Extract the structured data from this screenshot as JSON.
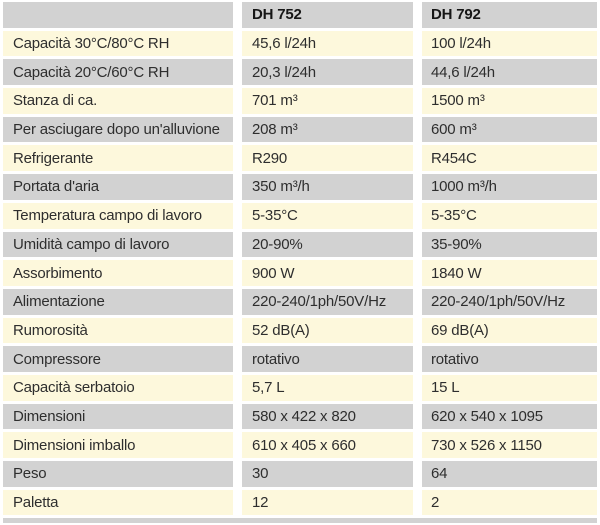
{
  "table": {
    "columns": [
      "",
      "DH 752",
      "DH 792"
    ],
    "rows": [
      {
        "label": "Capacità 30°C/80°C RH",
        "dh752": "45,6 l/24h",
        "dh792": "100 l/24h"
      },
      {
        "label": "Capacità 20°C/60°C RH",
        "dh752": "20,3 l/24h",
        "dh792": "44,6 l/24h"
      },
      {
        "label": "Stanza di ca.",
        "dh752": "701 m³",
        "dh792": "1500 m³"
      },
      {
        "label": "Per asciugare dopo un'alluvione",
        "dh752": "208 m³",
        "dh792": "600 m³"
      },
      {
        "label": "Refrigerante",
        "dh752": "R290",
        "dh792": "R454C"
      },
      {
        "label": "Portata d'aria",
        "dh752": "350 m³/h",
        "dh792": "1000 m³/h"
      },
      {
        "label": "Temperatura campo di lavoro",
        "dh752": "5-35°C",
        "dh792": "5-35°C"
      },
      {
        "label": "Umidità campo di lavoro",
        "dh752": "20-90%",
        "dh792": "35-90%"
      },
      {
        "label": "Assorbimento",
        "dh752": "900 W",
        "dh792": "1840 W"
      },
      {
        "label": "Alimentazione",
        "dh752": "220-240/1ph/50V/Hz",
        "dh792": "220-240/1ph/50V/Hz"
      },
      {
        "label": "Rumorosità",
        "dh752": "52 dB(A)",
        "dh792": "69 dB(A)"
      },
      {
        "label": "Compressore",
        "dh752": "rotativo",
        "dh792": "rotativo"
      },
      {
        "label": "Capacità serbatoio",
        "dh752": "5,7 L",
        "dh792": "15 L"
      },
      {
        "label": "Dimensioni",
        "dh752": "580 x 422 x 820",
        "dh792": "620 x 540 x 1095"
      },
      {
        "label": "Dimensioni imballo",
        "dh752": "610 x 405 x 660",
        "dh792": "730 x 526 x 1150"
      },
      {
        "label": "Peso",
        "dh752": "30",
        "dh792": "64"
      },
      {
        "label": "Paletta",
        "dh752": "12",
        "dh792": "2"
      }
    ]
  },
  "colors": {
    "row_gray": "#d2d2d2",
    "row_cream": "#fdf8dc",
    "text": "#2e2e2e",
    "header_text": "#161616"
  }
}
